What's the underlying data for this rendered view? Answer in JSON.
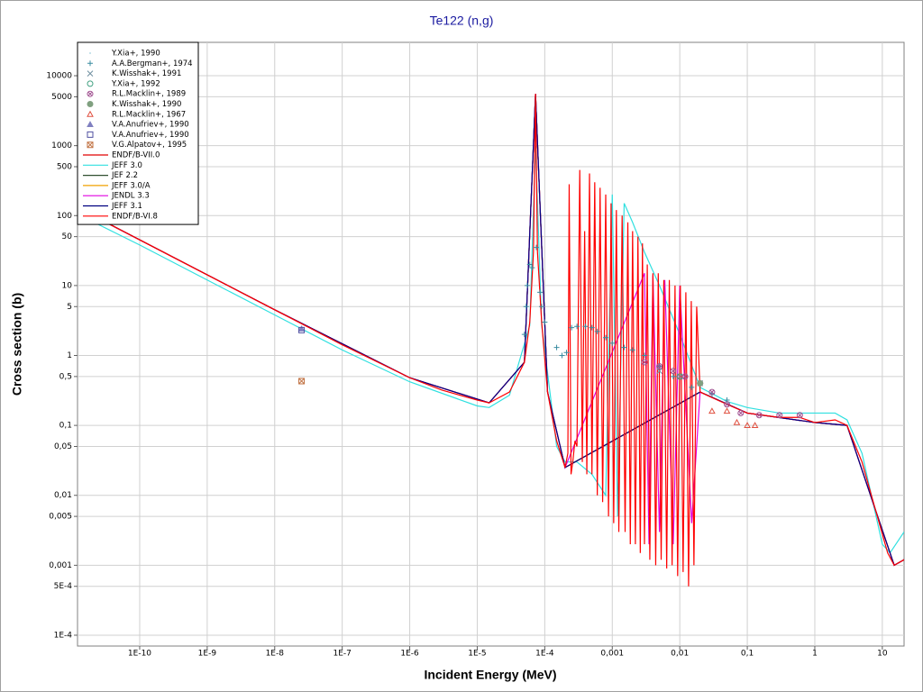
{
  "chart_data": {
    "type": "line",
    "title": "Te122 (n,g)",
    "x_label": "Incident Energy (MeV)",
    "y_label": "Cross section (b)",
    "x_log": true,
    "y_log": true,
    "grid": true,
    "legend": "upper left",
    "xlim": [
      1.2e-11,
      21
    ],
    "ylim": [
      7e-05,
      30000
    ],
    "xticks": [
      {
        "value": 1e-10,
        "label": "1E-10"
      },
      {
        "value": 1e-09,
        "label": "1E-9"
      },
      {
        "value": 1e-08,
        "label": "1E-8"
      },
      {
        "value": 1e-07,
        "label": "1E-7"
      },
      {
        "value": 1e-06,
        "label": "1E-6"
      },
      {
        "value": 1e-05,
        "label": "1E-5"
      },
      {
        "value": 0.0001,
        "label": "1E-4"
      },
      {
        "value": 0.001,
        "label": "0,001"
      },
      {
        "value": 0.01,
        "label": "0,01"
      },
      {
        "value": 0.1,
        "label": "0,1"
      },
      1,
      10
    ],
    "yticks": [
      {
        "value": 0.0001,
        "label": "1E-4"
      },
      {
        "value": 0.0005,
        "label": "5E-4"
      },
      {
        "value": 0.001,
        "label": "0,001"
      },
      {
        "value": 0.005,
        "label": "0,005"
      },
      {
        "value": 0.01,
        "label": "0,01"
      },
      {
        "value": 0.05,
        "label": "0,05"
      },
      {
        "value": 0.1,
        "label": "0,1"
      },
      {
        "value": 0.5,
        "label": "0,5"
      },
      1,
      5,
      10,
      50,
      100,
      500,
      1000,
      5000,
      10000
    ],
    "series": [
      {
        "name": "Y.Xia+, 1990",
        "kind": "scatter",
        "marker": "dot",
        "color": "#8fc8d8",
        "x": [
          2.5e-08
        ],
        "values": [
          2.5
        ]
      },
      {
        "name": "A.A.Bergman+, 1974",
        "kind": "scatter",
        "marker": "plus",
        "color": "#3a8ca0",
        "x": [
          5e-05,
          5.3e-05,
          5.5e-05,
          6e-05,
          6.5e-05,
          7.5e-05,
          8.5e-05,
          9e-05,
          0.0001,
          0.00015,
          0.00018,
          0.00021,
          0.00025,
          0.0003,
          0.0004,
          0.0005,
          0.0006,
          0.0008,
          0.001,
          0.0015,
          0.002,
          0.003,
          0.005,
          0.008,
          0.015,
          0.03,
          0.05
        ],
        "values": [
          2,
          5,
          10,
          20,
          18,
          35,
          8,
          5,
          3,
          1.3,
          1,
          1.1,
          2.5,
          2.6,
          2.6,
          2.5,
          2.2,
          1.8,
          1.5,
          1.3,
          1.2,
          1,
          0.7,
          0.5,
          0.35,
          0.28,
          0.23
        ]
      },
      {
        "name": "K.Wisshak+, 1991",
        "kind": "scatter",
        "marker": "x",
        "color": "#7090a0",
        "x": [
          0.005,
          0.01,
          0.02
        ],
        "values": [
          0.6,
          0.5,
          0.4
        ]
      },
      {
        "name": "Y.Xia+, 1992",
        "kind": "scatter",
        "marker": "circle",
        "color": "#40a080",
        "x": [
          0.01
        ],
        "values": [
          0.5
        ]
      },
      {
        "name": "R.L.Macklin+, 1989",
        "kind": "scatter",
        "marker": "circle-x",
        "color": "#a05090",
        "x": [
          0.003,
          0.005,
          0.008,
          0.012,
          0.02,
          0.03,
          0.05,
          0.08,
          0.15,
          0.3,
          0.6
        ],
        "values": [
          0.8,
          0.7,
          0.6,
          0.5,
          0.4,
          0.3,
          0.2,
          0.15,
          0.14,
          0.14,
          0.14
        ]
      },
      {
        "name": "K.Wisshak+, 1990",
        "kind": "scatter",
        "marker": "filled-circle",
        "color": "#80a080",
        "x": [
          0.02
        ],
        "values": [
          0.4
        ]
      },
      {
        "name": "R.L.Macklin+, 1967",
        "kind": "scatter",
        "marker": "triangle",
        "color": "#e05040",
        "x": [
          0.03,
          0.05,
          0.07,
          0.1,
          0.13
        ],
        "values": [
          0.16,
          0.16,
          0.11,
          0.1,
          0.1
        ]
      },
      {
        "name": "V.A.Anufriev+, 1990",
        "kind": "scatter",
        "marker": "filled-triangle",
        "color": "#8080c0",
        "x": [
          2.5e-08
        ],
        "values": [
          2.4
        ]
      },
      {
        "name": "V.A.Anufriev+, 1990",
        "kind": "scatter",
        "marker": "square",
        "color": "#5050a0",
        "x": [
          2.5e-08
        ],
        "values": [
          2.3
        ]
      },
      {
        "name": "V.G.Alpatov+, 1995",
        "kind": "scatter",
        "marker": "square-x",
        "color": "#c07040",
        "x": [
          2.5e-08
        ],
        "values": [
          0.43
        ]
      },
      {
        "name": "ENDF/B-VII.0",
        "kind": "line",
        "color": "#e00000",
        "x": [
          1.2e-11,
          1e-08,
          1e-06,
          1.5e-05,
          5e-05,
          7.3e-05,
          0.00011,
          0.0002,
          0.02,
          0.1,
          1,
          3,
          8,
          15,
          21
        ],
        "values": [
          130,
          4.5,
          0.48,
          0.21,
          0.8,
          5500,
          0.3,
          0.025,
          0.3,
          0.15,
          0.11,
          0.1,
          0.006,
          0.001,
          0.0012
        ]
      },
      {
        "name": "JEFF 3.0",
        "kind": "line",
        "color": "#30e0e0",
        "x": [
          1.2e-11,
          1e-10,
          1e-09,
          1e-08,
          1e-07,
          1e-06,
          1e-05,
          1.5e-05,
          3e-05,
          6e-05,
          7.3e-05,
          9e-05,
          0.00015,
          0.0002,
          0.0003,
          0.0005,
          0.0008,
          0.001,
          0.0012,
          0.0015,
          0.002,
          0.003,
          0.005,
          0.01,
          0.02,
          0.05,
          0.1,
          0.3,
          1,
          2,
          3,
          5,
          10,
          13,
          21
        ],
        "values": [
          105,
          38,
          12,
          3.8,
          1.2,
          0.42,
          0.19,
          0.18,
          0.27,
          2.7,
          1000,
          2.7,
          0.05,
          0.03,
          0.03,
          0.02,
          0.01,
          200,
          0.005,
          150,
          80,
          30,
          10,
          2,
          0.35,
          0.22,
          0.18,
          0.15,
          0.15,
          0.15,
          0.12,
          0.04,
          0.002,
          0.0015,
          0.003
        ]
      },
      {
        "name": "JEF 2.2",
        "kind": "line",
        "color": "#305030",
        "x": [
          1.2e-11,
          1e-08,
          1e-06,
          1.5e-05,
          5e-05,
          7.3e-05,
          0.00011,
          0.0002,
          0.02,
          0.1,
          1,
          3,
          8,
          15,
          21
        ],
        "values": [
          130,
          4.5,
          0.48,
          0.21,
          0.8,
          5500,
          0.3,
          0.025,
          0.3,
          0.15,
          0.11,
          0.1,
          0.006,
          0.001,
          0.0012
        ]
      },
      {
        "name": "JEFF 3.0/A",
        "kind": "line",
        "color": "#f0a000",
        "x": [
          1.2e-11,
          1e-08,
          1e-06,
          1.5e-05,
          5e-05,
          7.3e-05,
          0.00011,
          0.0002,
          0.02,
          0.1,
          1,
          3,
          8,
          15,
          21
        ],
        "values": [
          130,
          4.5,
          0.48,
          0.21,
          0.8,
          5500,
          0.3,
          0.025,
          0.3,
          0.15,
          0.11,
          0.1,
          0.006,
          0.001,
          0.0012
        ]
      },
      {
        "name": "JENDL 3.3",
        "kind": "line",
        "color": "#e000e0",
        "x": [
          1.2e-11,
          1e-08,
          1e-06,
          1.5e-05,
          5e-05,
          7.3e-05,
          0.00011,
          0.0002,
          0.003,
          0.0035,
          0.004,
          0.005,
          0.006,
          0.008,
          0.01,
          0.015,
          0.02,
          0.1,
          1,
          3,
          8,
          15,
          21
        ],
        "values": [
          130,
          4.5,
          0.48,
          0.21,
          0.8,
          5500,
          0.3,
          0.025,
          15,
          0.002,
          14,
          0.003,
          12,
          0.002,
          10,
          0.004,
          0.3,
          0.15,
          0.11,
          0.1,
          0.006,
          0.001,
          0.0012
        ]
      },
      {
        "name": "JEFF 3.1",
        "kind": "line",
        "color": "#000080",
        "x": [
          1.2e-11,
          1e-08,
          1e-06,
          1.5e-05,
          5e-05,
          7.3e-05,
          0.00011,
          0.0002,
          0.02,
          0.1,
          1,
          3,
          8,
          15,
          21
        ],
        "values": [
          130,
          4.5,
          0.48,
          0.21,
          0.8,
          5500,
          0.3,
          0.025,
          0.3,
          0.15,
          0.11,
          0.1,
          0.006,
          0.001,
          0.0012
        ]
      },
      {
        "name": "ENDF/B-VI.8",
        "kind": "line",
        "color": "#ff0000",
        "x": [
          1.2e-11,
          1e-10,
          1e-09,
          1e-08,
          1e-07,
          1e-06,
          3e-06,
          1e-05,
          1.5e-05,
          3e-05,
          5e-05,
          6e-05,
          6.8e-05,
          7.3e-05,
          7.8e-05,
          9e-05,
          0.00011,
          0.00015,
          0.0002,
          0.00022,
          0.00023,
          0.000245,
          0.00026,
          0.00028,
          0.0003,
          0.00033,
          0.00036,
          0.00039,
          0.00042,
          0.00046,
          0.0005,
          0.00055,
          0.0006,
          0.00066,
          0.00072,
          0.0008,
          0.00088,
          0.00096,
          0.00105,
          0.00115,
          0.00125,
          0.0014,
          0.00155,
          0.0017,
          0.00185,
          0.002,
          0.0022,
          0.0024,
          0.0026,
          0.0028,
          0.003,
          0.0033,
          0.0036,
          0.004,
          0.0044,
          0.0048,
          0.0053,
          0.0058,
          0.0064,
          0.007,
          0.0077,
          0.0085,
          0.0093,
          0.0102,
          0.0112,
          0.0123,
          0.0135,
          0.0148,
          0.0162,
          0.0178,
          0.02,
          0.03,
          0.05,
          0.1,
          0.3,
          0.6,
          1,
          2,
          3,
          5,
          8,
          12,
          15,
          21
        ],
        "values": [
          130,
          45,
          14.2,
          4.5,
          1.42,
          0.48,
          0.32,
          0.23,
          0.21,
          0.3,
          0.8,
          3,
          30,
          5500,
          30,
          3,
          0.3,
          0.06,
          0.025,
          0.04,
          280,
          0.02,
          0.03,
          0.06,
          0.05,
          450,
          0.03,
          60,
          0.02,
          400,
          0.02,
          300,
          0.01,
          250,
          0.008,
          200,
          0.005,
          150,
          0.004,
          120,
          0.003,
          100,
          0.003,
          80,
          0.002,
          60,
          0.002,
          50,
          0.0015,
          40,
          0.002,
          20,
          0.0012,
          15,
          0.001,
          15,
          0.0012,
          12,
          0.0009,
          12,
          0.001,
          10,
          0.0007,
          10,
          0.0008,
          8,
          0.0005,
          6,
          0.001,
          5,
          0.3,
          0.25,
          0.2,
          0.15,
          0.13,
          0.13,
          0.11,
          0.12,
          0.1,
          0.03,
          0.006,
          0.0015,
          0.001,
          0.0012
        ]
      }
    ]
  }
}
